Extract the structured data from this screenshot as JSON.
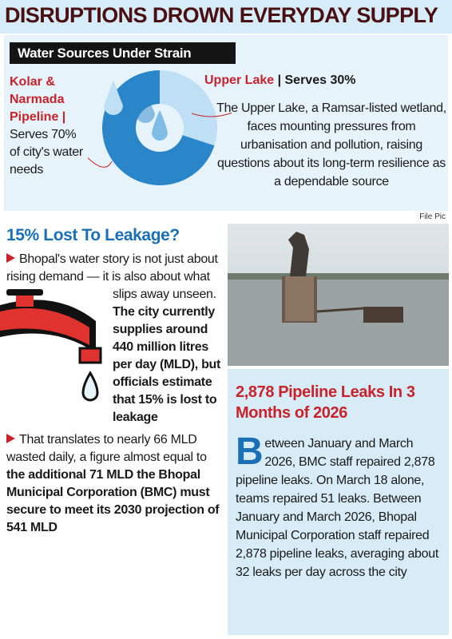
{
  "header": {
    "title": "DISRUPTIONS DROWN EVERYDAY SUPPLY"
  },
  "sources": {
    "label": "Water Sources Under Strain",
    "kolar": {
      "name": "Kolar & Narmada Pipeline |",
      "text": "Serves 70% of city's water needs"
    },
    "upper_lake": {
      "name": "Upper Lake",
      "serves": " | Serves 30%",
      "text": "The Upper Lake, a Ramsar-listed wetland, faces mounting pressures from urbanisation and pollution, raising questions about its long-term resilience as a dependable source"
    },
    "donut": {
      "type": "pie",
      "values": [
        70,
        30
      ],
      "colors": [
        "#2a86c9",
        "#bfe0f4"
      ]
    }
  },
  "photo_credit": "File Pic",
  "leakage": {
    "heading": "15% Lost To Leakage?",
    "para1": {
      "normal": "Bhopal's water story is not just about rising demand — it is also about what slips away unseen. ",
      "bold": "The city currently supplies around 440 million litres per day (MLD), but officials estimate that 15% is lost to leakage"
    },
    "para2": {
      "normal": "That translates to nearly 66 MLD wasted daily, a figure almost equal to ",
      "bold": "the additional 71 MLD the Bhopal Municipal Corporation (BMC) must secure to meet its 2030 projection of 541 MLD"
    }
  },
  "leaks": {
    "heading": "2,878 Pipeline Leaks In 3 Months of 2026",
    "drop_cap": "B",
    "text": "etween January and March 2026, BMC staff repaired 2,878 pipeline leaks. On March 18 alone, teams repaired 51 leaks. Between January and March 2026, Bhopal Municipal Corporation staff repaired 2,878 pipeline leaks, averaging about 32 leaks per day across the city"
  }
}
